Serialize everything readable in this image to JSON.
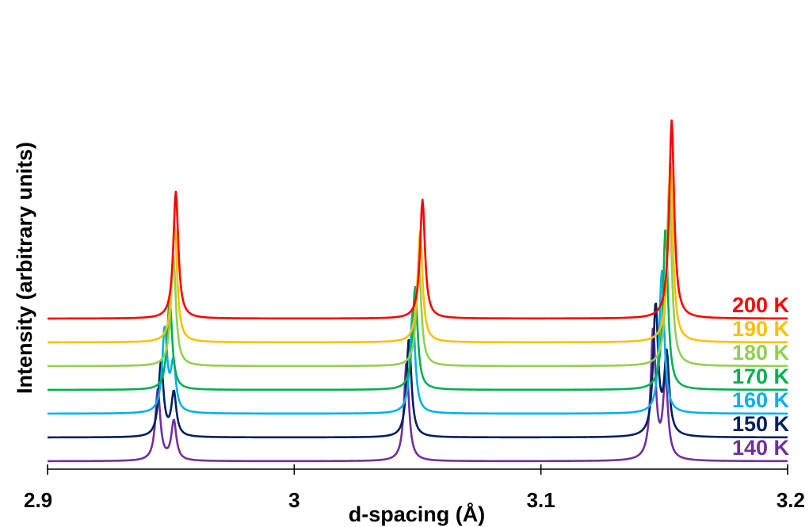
{
  "chart_data": {
    "type": "line",
    "title": "",
    "xlabel": "d-spacing (Å)",
    "ylabel": "Intensity (arbitrary units)",
    "xlim": [
      2.9,
      3.2
    ],
    "x_ticks": [
      2.9,
      3.0,
      3.1,
      3.2
    ],
    "x_tick_labels": [
      "2.9",
      "3",
      "3.1",
      "3.2"
    ],
    "y_ticks_shown": false,
    "grid": false,
    "legend": "labels at right end of each stacked trace",
    "stacked_offset": true,
    "series": [
      {
        "name": "140 K",
        "color": "#7030a0",
        "baseline": 0.0,
        "peaks": [
          {
            "d": 2.9447,
            "h": 0.9
          },
          {
            "d": 2.9512,
            "h": 0.5
          },
          {
            "d": 3.0455,
            "h": 1.25
          },
          {
            "d": 3.1455,
            "h": 1.65
          },
          {
            "d": 3.1505,
            "h": 1.0
          }
        ]
      },
      {
        "name": "150 K",
        "color": "#002060",
        "baseline": 0.3,
        "peaks": [
          {
            "d": 2.946,
            "h": 0.95
          },
          {
            "d": 2.9512,
            "h": 0.55
          },
          {
            "d": 3.0465,
            "h": 1.25
          },
          {
            "d": 3.1465,
            "h": 1.65
          },
          {
            "d": 3.151,
            "h": 1.0
          }
        ]
      },
      {
        "name": "160 K",
        "color": "#00b0f0",
        "baseline": 0.6,
        "peaks": [
          {
            "d": 2.9475,
            "h": 1.05
          },
          {
            "d": 2.951,
            "h": 0.6
          },
          {
            "d": 3.048,
            "h": 1.3
          },
          {
            "d": 3.149,
            "h": 1.8
          }
        ]
      },
      {
        "name": "170 K",
        "color": "#00b050",
        "baseline": 0.9,
        "peaks": [
          {
            "d": 2.9495,
            "h": 1.15
          },
          {
            "d": 3.049,
            "h": 1.3
          },
          {
            "d": 3.1505,
            "h": 2.05
          }
        ]
      },
      {
        "name": "180 K",
        "color": "#92d050",
        "baseline": 1.2,
        "peaks": [
          {
            "d": 2.951,
            "h": 1.4
          },
          {
            "d": 3.0505,
            "h": 1.3
          },
          {
            "d": 3.152,
            "h": 2.3
          }
        ]
      },
      {
        "name": "190 K",
        "color": "#ffc000",
        "baseline": 1.5,
        "peaks": [
          {
            "d": 2.9515,
            "h": 1.5
          },
          {
            "d": 3.051,
            "h": 1.4
          },
          {
            "d": 3.1525,
            "h": 2.3
          }
        ]
      },
      {
        "name": "200 K",
        "color": "#ff0000",
        "baseline": 1.8,
        "peaks": [
          {
            "d": 2.952,
            "h": 1.6
          },
          {
            "d": 3.052,
            "h": 1.5
          },
          {
            "d": 3.153,
            "h": 2.5
          }
        ]
      }
    ]
  }
}
